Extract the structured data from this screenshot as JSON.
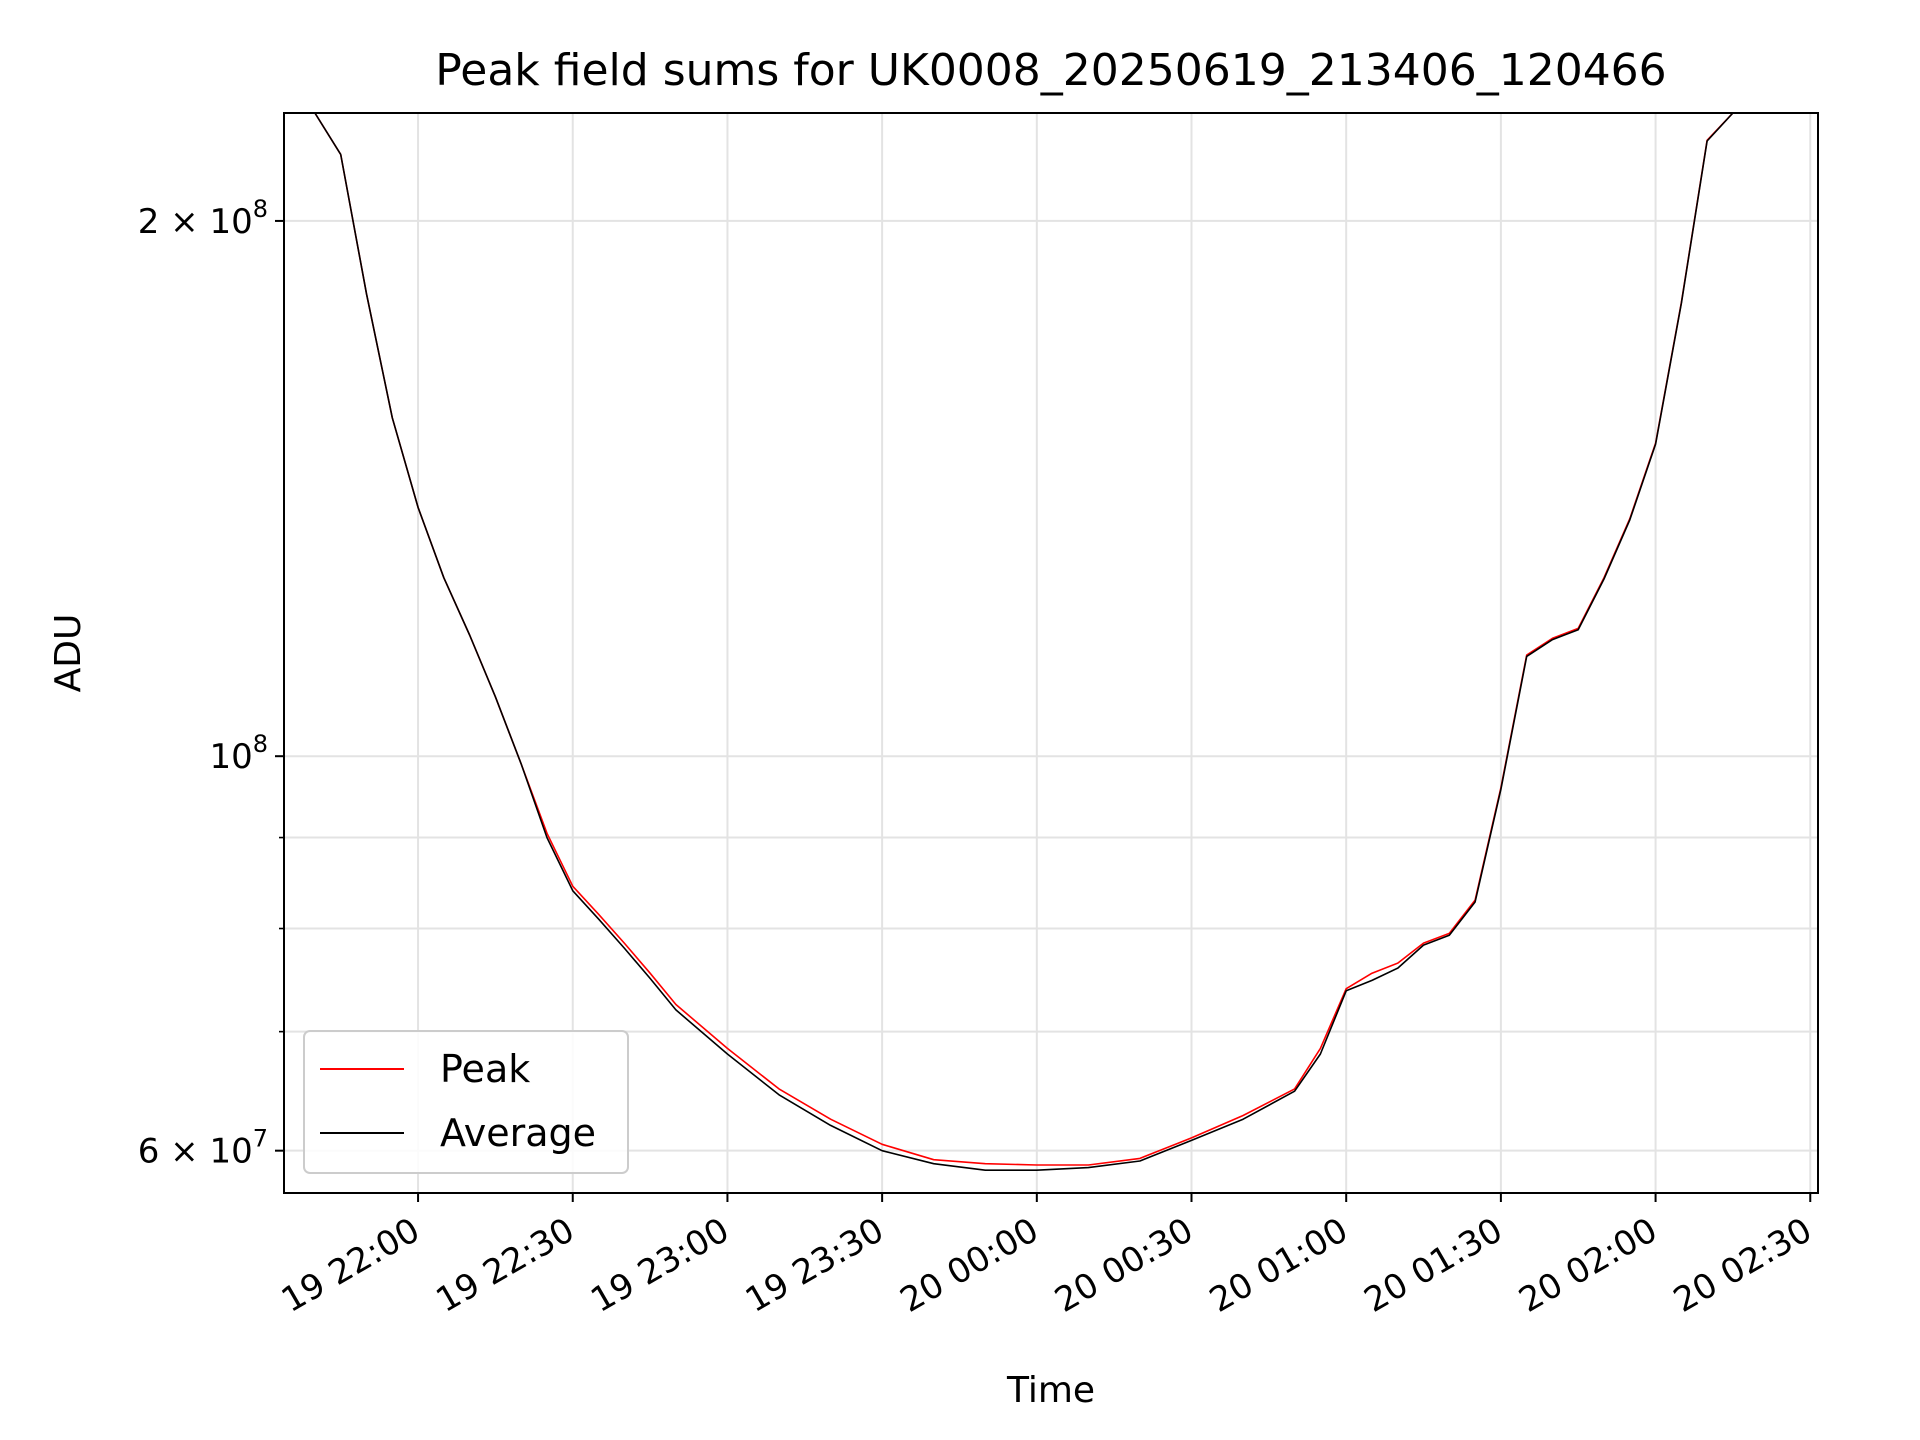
{
  "chart_data": {
    "type": "line",
    "title": "Peak field sums for UK0008_20250619_213406_120466",
    "xlabel": "Time",
    "ylabel": "ADU",
    "y_scale": "log",
    "ylim": [
      56800000,
      230000000
    ],
    "xlim": [
      "2025-06-19 21:34:00",
      "2025-06-20 02:31:30"
    ],
    "grid": true,
    "legend_position": "lower-left",
    "x_ticks": [
      {
        "time": "2025-06-19 22:00:00",
        "label": "19 22:00"
      },
      {
        "time": "2025-06-19 22:30:00",
        "label": "19 22:30"
      },
      {
        "time": "2025-06-19 23:00:00",
        "label": "19 23:00"
      },
      {
        "time": "2025-06-19 23:30:00",
        "label": "19 23:30"
      },
      {
        "time": "2025-06-20 00:00:00",
        "label": "20 00:00"
      },
      {
        "time": "2025-06-20 00:30:00",
        "label": "20 00:30"
      },
      {
        "time": "2025-06-20 01:00:00",
        "label": "20 01:00"
      },
      {
        "time": "2025-06-20 01:30:00",
        "label": "20 01:30"
      },
      {
        "time": "2025-06-20 02:00:00",
        "label": "20 02:00"
      },
      {
        "time": "2025-06-20 02:30:00",
        "label": "20 02:30"
      }
    ],
    "y_major_ticks": [
      {
        "value": 60000000,
        "mantissa": "6",
        "base": "10",
        "exp": "7"
      },
      {
        "value": 100000000,
        "mantissa": "",
        "base": "10",
        "exp": "8"
      },
      {
        "value": 200000000,
        "mantissa": "2",
        "base": "10",
        "exp": "8"
      }
    ],
    "y_minor_ticks": [
      70000000,
      80000000,
      90000000
    ],
    "series": [
      {
        "name": "Peak",
        "color": "#ff0000",
        "x": [
          "2025-06-19 21:34:00",
          "2025-06-19 21:40:00",
          "2025-06-19 21:45:00",
          "2025-06-19 21:50:00",
          "2025-06-19 21:55:00",
          "2025-06-19 22:00:00",
          "2025-06-19 22:05:00",
          "2025-06-19 22:10:00",
          "2025-06-19 22:15:00",
          "2025-06-19 22:20:00",
          "2025-06-19 22:25:00",
          "2025-06-19 22:30:00",
          "2025-06-19 22:35:00",
          "2025-06-19 22:40:00",
          "2025-06-19 22:45:00",
          "2025-06-19 22:50:00",
          "2025-06-19 23:00:00",
          "2025-06-19 23:10:00",
          "2025-06-19 23:20:00",
          "2025-06-19 23:30:00",
          "2025-06-19 23:40:00",
          "2025-06-19 23:50:00",
          "2025-06-20 00:00:00",
          "2025-06-20 00:10:00",
          "2025-06-20 00:20:00",
          "2025-06-20 00:30:00",
          "2025-06-20 00:40:00",
          "2025-06-20 00:50:00",
          "2025-06-20 00:55:00",
          "2025-06-20 01:00:00",
          "2025-06-20 01:05:00",
          "2025-06-20 01:10:00",
          "2025-06-20 01:15:00",
          "2025-06-20 01:20:00",
          "2025-06-20 01:25:00",
          "2025-06-20 01:30:00",
          "2025-06-20 01:35:00",
          "2025-06-20 01:40:00",
          "2025-06-20 01:45:00",
          "2025-06-20 01:50:00",
          "2025-06-20 01:55:00",
          "2025-06-20 02:00:00",
          "2025-06-20 02:05:00",
          "2025-06-20 02:10:00",
          "2025-06-20 02:15:00"
        ],
        "values": [
          230000000,
          230000000,
          218000000,
          182000000,
          155000000,
          138000000,
          126000000,
          117000000,
          108000000,
          99000000,
          90500000,
          84500000,
          81500000,
          78500000,
          75500000,
          72500000,
          68500000,
          65000000,
          62500000,
          60500000,
          59300000,
          59000000,
          58900000,
          58900000,
          59400000,
          61000000,
          62800000,
          65000000,
          68500000,
          74000000,
          75500000,
          76500000,
          78500000,
          79500000,
          83000000,
          96000000,
          114000000,
          116500000,
          118000000,
          126000000,
          136000000,
          150000000,
          180000000,
          222000000,
          230000000
        ]
      },
      {
        "name": "Average",
        "color": "#000000",
        "x": [
          "2025-06-19 21:34:00",
          "2025-06-19 21:40:00",
          "2025-06-19 21:45:00",
          "2025-06-19 21:50:00",
          "2025-06-19 21:55:00",
          "2025-06-19 22:00:00",
          "2025-06-19 22:05:00",
          "2025-06-19 22:10:00",
          "2025-06-19 22:15:00",
          "2025-06-19 22:20:00",
          "2025-06-19 22:25:00",
          "2025-06-19 22:30:00",
          "2025-06-19 22:35:00",
          "2025-06-19 22:40:00",
          "2025-06-19 22:45:00",
          "2025-06-19 22:50:00",
          "2025-06-19 23:00:00",
          "2025-06-19 23:10:00",
          "2025-06-19 23:20:00",
          "2025-06-19 23:30:00",
          "2025-06-19 23:40:00",
          "2025-06-19 23:50:00",
          "2025-06-20 00:00:00",
          "2025-06-20 00:10:00",
          "2025-06-20 00:20:00",
          "2025-06-20 00:30:00",
          "2025-06-20 00:40:00",
          "2025-06-20 00:50:00",
          "2025-06-20 00:55:00",
          "2025-06-20 01:00:00",
          "2025-06-20 01:05:00",
          "2025-06-20 01:10:00",
          "2025-06-20 01:15:00",
          "2025-06-20 01:20:00",
          "2025-06-20 01:25:00",
          "2025-06-20 01:30:00",
          "2025-06-20 01:35:00",
          "2025-06-20 01:40:00",
          "2025-06-20 01:45:00",
          "2025-06-20 01:50:00",
          "2025-06-20 01:55:00",
          "2025-06-20 02:00:00",
          "2025-06-20 02:05:00",
          "2025-06-20 02:10:00",
          "2025-06-20 02:15:00"
        ],
        "values": [
          230000000,
          230000000,
          218000000,
          182000000,
          155000000,
          138000000,
          126000000,
          117000000,
          108000000,
          99000000,
          90000000,
          84000000,
          81000000,
          78000000,
          75000000,
          72000000,
          68000000,
          64500000,
          62000000,
          60000000,
          59000000,
          58500000,
          58500000,
          58700000,
          59200000,
          60800000,
          62500000,
          64800000,
          68000000,
          73800000,
          74800000,
          76000000,
          78300000,
          79300000,
          82800000,
          95800000,
          113800000,
          116300000,
          117800000,
          125800000,
          135800000,
          149800000,
          179800000,
          221800000,
          230000000
        ]
      }
    ]
  }
}
